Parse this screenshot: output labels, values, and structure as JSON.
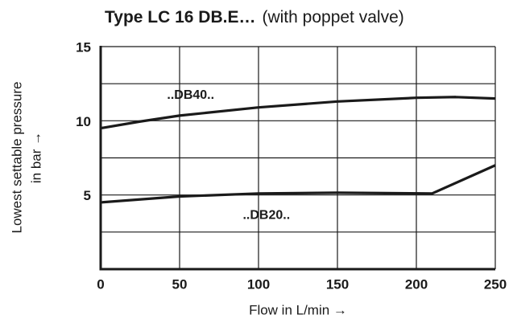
{
  "chart_data": {
    "type": "line",
    "title": "Type LC 16 DB.E…",
    "subtitle": "(with poppet valve)",
    "x_label": "Flow in L/min →",
    "y_label": [
      "Lowest settable pressure",
      "in bar →"
    ],
    "xlim": [
      0,
      250
    ],
    "xticks": [
      0,
      50,
      100,
      150,
      200,
      250
    ],
    "ylim": [
      0,
      15
    ],
    "yticks": [
      5,
      10,
      15
    ],
    "ygrid": [
      2.5,
      5,
      7.5,
      10,
      12.5,
      15
    ],
    "grid": true,
    "series": [
      {
        "name": "..DB40..",
        "color": "#1a1a1a",
        "x": [
          0,
          25,
          50,
          100,
          150,
          200,
          225,
          250
        ],
        "values": [
          9.5,
          9.95,
          10.35,
          10.9,
          11.3,
          11.55,
          11.6,
          11.5
        ],
        "label_at": [
          57,
          11.7
        ]
      },
      {
        "name": "..DB20..",
        "color": "#1a1a1a",
        "x": [
          0,
          50,
          100,
          150,
          210,
          250
        ],
        "values": [
          4.5,
          4.9,
          5.1,
          5.15,
          5.1,
          7.0
        ],
        "label_at": [
          105,
          3.6
        ]
      }
    ]
  }
}
